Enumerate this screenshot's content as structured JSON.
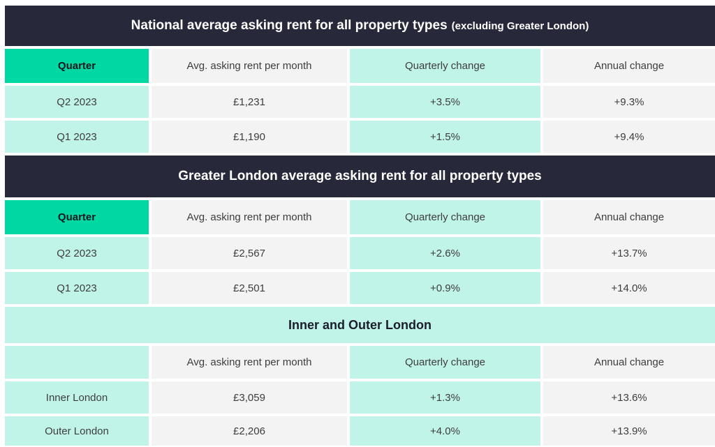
{
  "colors": {
    "header_bg": "#27293a",
    "accent": "#00d8a3",
    "mint": "#c1f4e8",
    "cell_gray": "#f3f3f3",
    "text": "#3d3d3d",
    "title_text": "#ffffff",
    "page_bg": "#ffffff"
  },
  "chart_data": [
    {
      "type": "table",
      "title": "National average asking rent for all property types",
      "title_note": "(excluding Greater London)",
      "columns": [
        "Quarter",
        "Avg. asking rent per month",
        "Quarterly change",
        "Annual change"
      ],
      "rows": [
        [
          "Q2 2023",
          "£1,231",
          "+3.5%",
          "+9.3%"
        ],
        [
          "Q1 2023",
          "£1,190",
          "+1.5%",
          "+9.4%"
        ]
      ]
    },
    {
      "type": "table",
      "title": "Greater London average asking rent for all property types",
      "columns": [
        "Quarter",
        "Avg. asking rent per month",
        "Quarterly change",
        "Annual change"
      ],
      "rows": [
        [
          "Q2 2023",
          "£2,567",
          "+2.6%",
          "+13.7%"
        ],
        [
          "Q1 2023",
          "£2,501",
          "+0.9%",
          "+14.0%"
        ]
      ]
    },
    {
      "type": "table",
      "title": "Inner and Outer London",
      "columns": [
        "",
        "Avg. asking rent per month",
        "Quarterly change",
        "Annual change"
      ],
      "rows": [
        [
          "Inner London",
          "£3,059",
          "+1.3%",
          "+13.6%"
        ],
        [
          "Outer London",
          "£2,206",
          "+4.0%",
          "+13.9%"
        ]
      ]
    }
  ]
}
